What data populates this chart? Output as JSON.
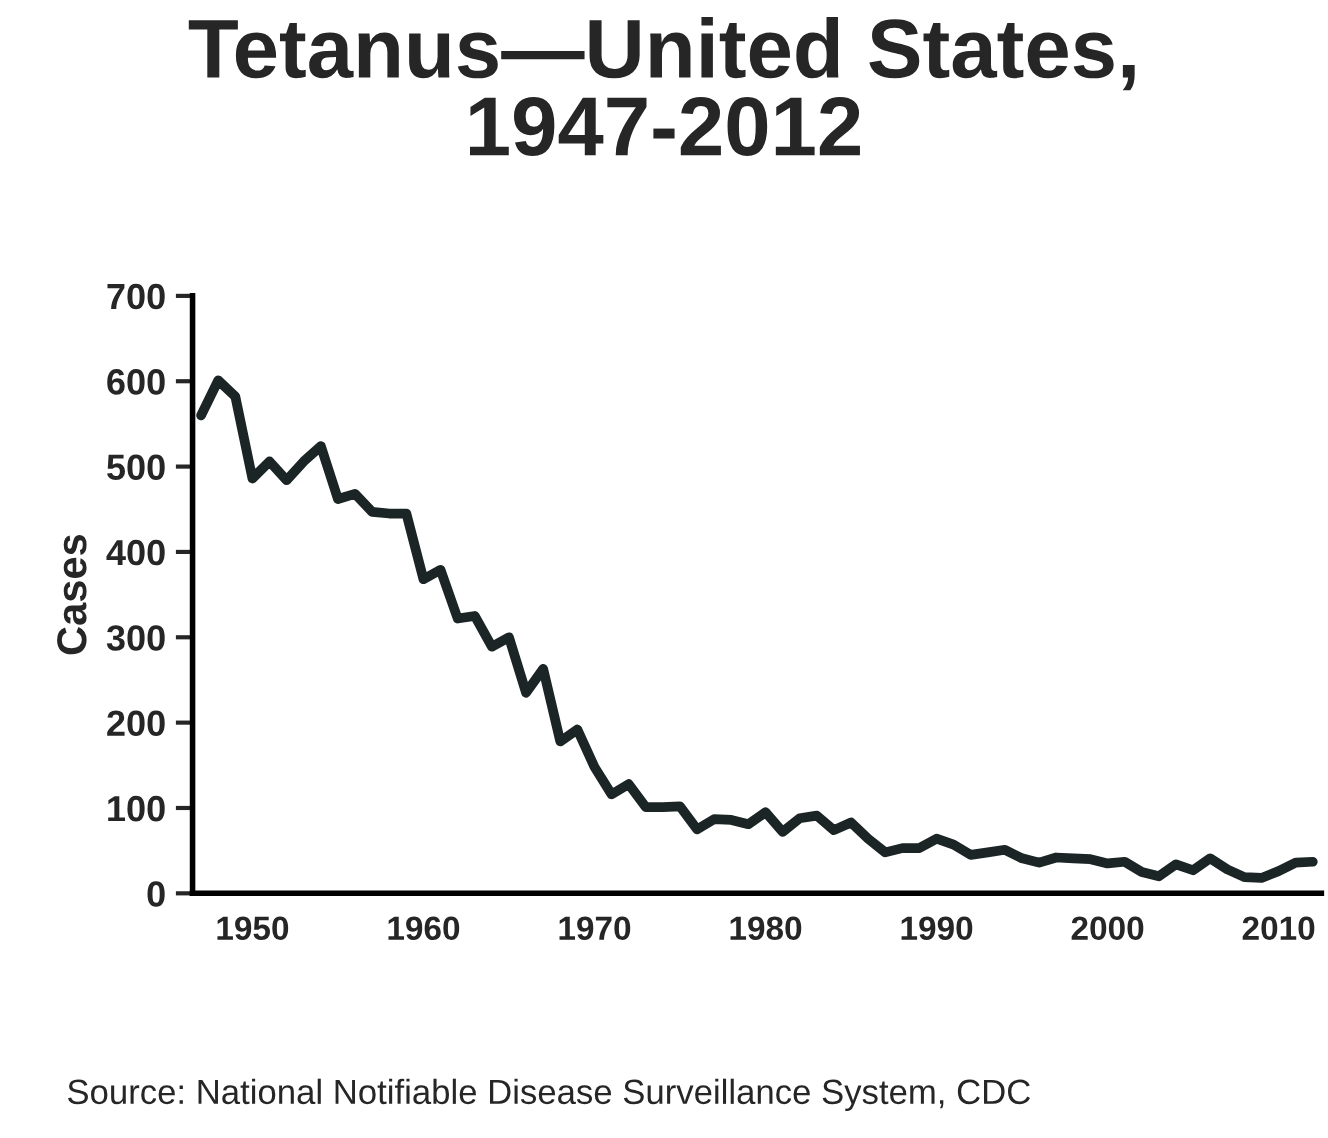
{
  "chart_data": {
    "type": "line",
    "title": "Tetanus—United States,\n1947-2012",
    "ylabel": "Cases",
    "x": [
      1947,
      1948,
      1949,
      1950,
      1951,
      1952,
      1953,
      1954,
      1955,
      1956,
      1957,
      1958,
      1959,
      1960,
      1961,
      1962,
      1963,
      1964,
      1965,
      1966,
      1967,
      1968,
      1969,
      1970,
      1971,
      1972,
      1973,
      1974,
      1975,
      1976,
      1977,
      1978,
      1979,
      1980,
      1981,
      1982,
      1983,
      1984,
      1985,
      1986,
      1987,
      1988,
      1989,
      1990,
      1991,
      1992,
      1993,
      1994,
      1995,
      1996,
      1997,
      1998,
      1999,
      2000,
      2001,
      2002,
      2003,
      2004,
      2005,
      2006,
      2007,
      2008,
      2009,
      2010,
      2011,
      2012
    ],
    "series": [
      {
        "color": "#1c2526",
        "values": [
          560,
          601,
          582,
          486,
          506,
          484,
          506,
          524,
          462,
          468,
          447,
          445,
          445,
          368,
          379,
          322,
          325,
          289,
          300,
          235,
          263,
          178,
          192,
          148,
          116,
          128,
          101,
          101,
          102,
          75,
          87,
          86,
          81,
          95,
          72,
          88,
          91,
          74,
          83,
          64,
          48,
          53,
          53,
          64,
          57,
          45,
          48,
          51,
          41,
          36,
          42,
          41,
          40,
          35,
          37,
          25,
          20,
          34,
          27,
          41,
          28,
          19,
          18,
          26,
          36,
          37
        ]
      }
    ],
    "xlim": [
      1946.5,
      2012.5
    ],
    "xticks": [
      1950,
      1960,
      1970,
      1980,
      1990,
      2000,
      2010
    ],
    "ylim": [
      0,
      700
    ],
    "yticks": [
      0,
      100,
      200,
      300,
      400,
      500,
      600,
      700
    ],
    "grid": false,
    "legend": false,
    "marker": "none",
    "line_style": "solid",
    "annotations": [
      "Source: National Notifiable Disease Surveillance System, CDC"
    ]
  }
}
